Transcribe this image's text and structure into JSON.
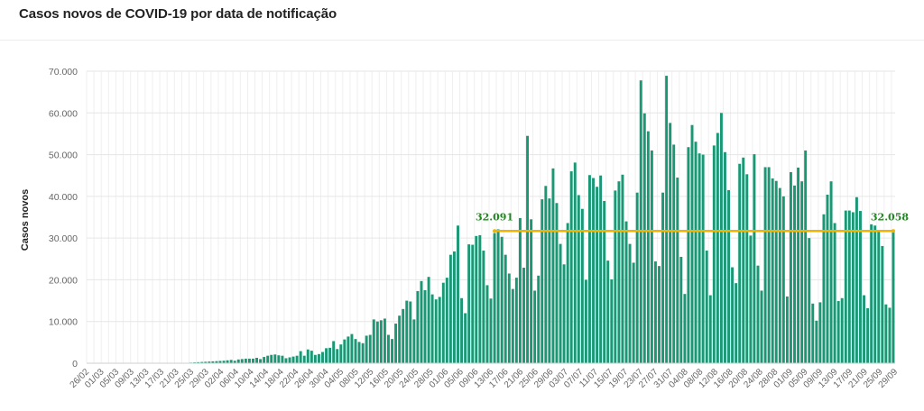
{
  "title": "Casos novos de COVID-19 por data de notificação",
  "chart_data": {
    "type": "bar",
    "ylabel": "Casos novos",
    "ylim": [
      0,
      70000
    ],
    "y_ticks": [
      "0",
      "10.000",
      "20.000",
      "30.000",
      "40.000",
      "50.000",
      "60.000",
      "70.000"
    ],
    "y_tick_values": [
      0,
      10000,
      20000,
      30000,
      40000,
      50000,
      60000,
      70000
    ],
    "x_tick_labels": [
      "26/02",
      "01/03",
      "05/03",
      "09/03",
      "13/03",
      "17/03",
      "21/03",
      "25/03",
      "29/03",
      "02/04",
      "06/04",
      "10/04",
      "14/04",
      "18/04",
      "22/04",
      "26/04",
      "30/04",
      "04/05",
      "08/05",
      "12/05",
      "16/05",
      "20/05",
      "24/05",
      "28/05",
      "01/06",
      "05/06",
      "09/06",
      "13/06",
      "17/06",
      "21/06",
      "25/06",
      "29/06",
      "03/07",
      "07/07",
      "11/07",
      "15/07",
      "19/07",
      "23/07",
      "27/07",
      "31/07",
      "04/08",
      "08/08",
      "12/08",
      "16/08",
      "20/08",
      "24/08",
      "28/08",
      "01/09",
      "05/09",
      "09/09",
      "13/09",
      "17/09",
      "21/09",
      "25/09",
      "29/09"
    ],
    "bar_color": "#1a9876",
    "average_line": {
      "value": 31700,
      "color": "#f0b400",
      "label_start": "32.091",
      "label_end": "32.058",
      "label_color": "#1e8a1e"
    },
    "values": [
      0,
      0,
      0,
      0,
      0,
      0,
      0,
      0,
      0,
      0,
      0,
      0,
      0,
      0,
      0,
      0,
      0,
      0,
      0,
      0,
      0,
      0,
      0,
      0,
      0,
      50,
      80,
      100,
      150,
      200,
      250,
      300,
      350,
      400,
      450,
      500,
      550,
      600,
      700,
      800,
      600,
      900,
      1000,
      1100,
      1100,
      1100,
      1300,
      1000,
      1500,
      1800,
      2000,
      2100,
      1900,
      1800,
      1200,
      1400,
      1600,
      1800,
      2900,
      1800,
      3300,
      3000,
      2000,
      2200,
      2700,
      3600,
      3700,
      5300,
      3400,
      4500,
      5700,
      6400,
      7000,
      5800,
      5100,
      4800,
      6600,
      6800,
      10500,
      10000,
      10300,
      10700,
      6800,
      5800,
      9500,
      11400,
      13000,
      15000,
      14800,
      10500,
      17300,
      19700,
      17500,
      20700,
      16500,
      15300,
      15900,
      19300,
      20500,
      26000,
      26800,
      33000,
      15600,
      12000,
      28500,
      28400,
      30500,
      30700,
      27000,
      18700,
      15500,
      31200,
      32100,
      30300,
      26000,
      21500,
      17800,
      20500,
      34800,
      22900,
      54500,
      34500,
      17400,
      21000,
      39300,
      42500,
      39500,
      46700,
      38400,
      28600,
      23700,
      33600,
      46000,
      48100,
      40300,
      37000,
      20000,
      45100,
      44400,
      42300,
      45000,
      38900,
      24600,
      20100,
      41400,
      43600,
      45200,
      34000,
      28600,
      24100,
      40900,
      67800,
      59900,
      55600,
      51000,
      24400,
      23300,
      40900,
      68900,
      57600,
      52400,
      44500,
      25500,
      16600,
      51800,
      57100,
      53100,
      50300,
      50000,
      27000,
      16300,
      52200,
      55200,
      60000,
      50600,
      41500,
      23000,
      19200,
      47800,
      49300,
      45300,
      30600,
      50100,
      23400,
      17400,
      47000,
      47000,
      44300,
      43700,
      42000,
      40000,
      16000,
      45800,
      42600,
      46900,
      43600,
      51000,
      30000,
      14300,
      10200,
      14600,
      35700,
      40400,
      43600,
      33600,
      14900,
      15600,
      36600,
      36600,
      36200,
      39800,
      36500,
      16300,
      13200,
      33300,
      33000,
      31500,
      28100,
      14100,
      13300,
      32058
    ]
  }
}
